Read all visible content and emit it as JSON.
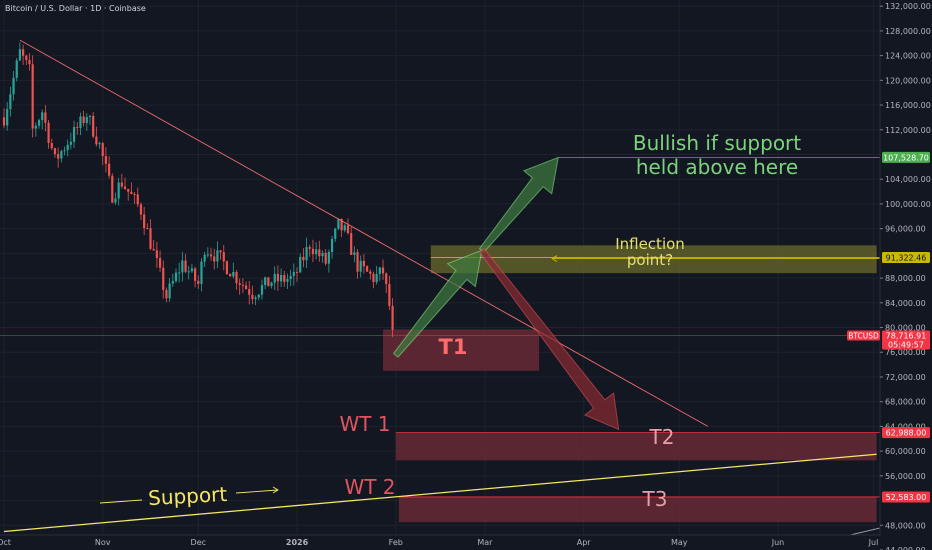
{
  "title": "Bitcoin / U.S. Dollar · 1D · Coinbase",
  "colors": {
    "background": "#131722",
    "grid": "#1e222d",
    "up_candle": "#26a69a",
    "down_candle": "#ef5350",
    "price_line": "#f23645",
    "downtrend_line": "#f06b6b",
    "support_line": "#f5e663",
    "bullish_green": "#7dd37d",
    "bearish_red": "#c23b3b",
    "target_box": "#6b2a36",
    "inflection_box": "#6a6a2a"
  },
  "chart_data": {
    "type": "candlestick",
    "title": "Bitcoin / U.S. Dollar · 1D · Coinbase",
    "y_axis": {
      "min": 44000,
      "max": 133000,
      "ticks": [
        "132,000.00",
        "128,000.00",
        "124,000.00",
        "120,000.00",
        "116,000.00",
        "112,000.00",
        "104,000.00",
        "100,000.00",
        "96,000.00",
        "88,000.00",
        "84,000.00",
        "80,000.00",
        "76,000.00",
        "72,000.00",
        "68,000.00",
        "64,000.00",
        "60,000.00",
        "56,000.00",
        "48,000.00",
        "44,000.00"
      ]
    },
    "x_axis": {
      "ticks": [
        "Oct",
        "Nov",
        "Dec",
        "2026",
        "Feb",
        "Mar",
        "Apr",
        "May",
        "Jun",
        "Jul"
      ]
    },
    "close_path": [
      [
        "2025-10-01",
        114000
      ],
      [
        "2025-10-06",
        124500
      ],
      [
        "2025-10-09",
        121500
      ],
      [
        "2025-10-10",
        112000
      ],
      [
        "2025-10-13",
        115000
      ],
      [
        "2025-10-17",
        107000
      ],
      [
        "2025-10-21",
        110000
      ],
      [
        "2025-10-27",
        114500
      ],
      [
        "2025-10-31",
        109500
      ],
      [
        "2025-11-04",
        101500
      ],
      [
        "2025-11-07",
        103500
      ],
      [
        "2025-11-13",
        99000
      ],
      [
        "2025-11-17",
        92000
      ],
      [
        "2025-11-21",
        85000
      ],
      [
        "2025-11-26",
        90500
      ],
      [
        "2025-12-01",
        87000
      ],
      [
        "2025-12-03",
        93000
      ],
      [
        "2025-12-08",
        91000
      ],
      [
        "2025-12-15",
        87000
      ],
      [
        "2025-12-18",
        85500
      ],
      [
        "2025-12-24",
        87500
      ],
      [
        "2025-12-31",
        88000
      ],
      [
        "2026-01-05",
        93500
      ],
      [
        "2026-01-10",
        90500
      ],
      [
        "2026-01-14",
        96500
      ],
      [
        "2026-01-16",
        95500
      ],
      [
        "2026-01-20",
        90000
      ],
      [
        "2026-01-25",
        88000
      ],
      [
        "2026-01-28",
        89000
      ],
      [
        "2026-01-30",
        83500
      ],
      [
        "2026-01-31",
        78700
      ]
    ],
    "current_price": {
      "symbol": "BTCUSD",
      "price": "78,716.91",
      "countdown": "05:49:57",
      "value": 78716.91
    },
    "price_labels": [
      {
        "text": "107,528.70",
        "value": 107528.7,
        "color": "#4caf50"
      },
      {
        "text": "91,322.46",
        "value": 91322.46,
        "color": "#c9b900"
      },
      {
        "text": "62,988.00",
        "value": 62988,
        "color": "#f23645"
      },
      {
        "text": "52,583.00",
        "value": 52583,
        "color": "#f23645"
      }
    ],
    "trendlines": [
      {
        "name": "downtrend",
        "from": [
          "2025-10-06",
          126500
        ],
        "to": [
          "2026-05-10",
          64000
        ]
      },
      {
        "name": "support",
        "from": [
          "2025-10-01",
          47000
        ],
        "to": [
          "2026-07-02",
          59500
        ]
      }
    ],
    "zones": [
      {
        "label": "T1",
        "from": [
          "2026-01-28",
          73000
        ],
        "to": [
          "2026-03-18",
          79700
        ]
      },
      {
        "label": "T2",
        "from": [
          "2026-02-01",
          58500
        ],
        "to": [
          "2026-07-02",
          63000
        ]
      },
      {
        "label": "T3",
        "from": [
          "2026-02-02",
          48500
        ],
        "to": [
          "2026-07-02",
          52600
        ]
      },
      {
        "label": "inflection",
        "from": [
          "2026-02-12",
          88800
        ],
        "to": [
          "2026-07-02",
          93300
        ]
      }
    ],
    "arrows": [
      {
        "name": "bullish-arrow-1",
        "from": [
          "2026-02-01",
          75500
        ],
        "to": [
          "2026-02-28",
          92500
        ],
        "color": "green"
      },
      {
        "name": "bullish-arrow-2",
        "from": [
          "2026-02-28",
          92500
        ],
        "to": [
          "2026-03-24",
          107500
        ],
        "color": "green"
      },
      {
        "name": "bearish-arrow",
        "from": [
          "2026-02-28",
          92500
        ],
        "to": [
          "2026-04-12",
          63500
        ],
        "color": "red"
      }
    ],
    "annotations": [
      {
        "name": "bullish-note",
        "lines": [
          "Bullish if support",
          "held above here"
        ]
      },
      {
        "name": "inflection-note",
        "lines": [
          "Inflection",
          "point?"
        ]
      },
      {
        "name": "support-label",
        "text": "Support"
      },
      {
        "name": "wt1-label",
        "text": "WT 1"
      },
      {
        "name": "wt2-label",
        "text": "WT 2"
      },
      {
        "name": "t1-label",
        "text": "T1"
      },
      {
        "name": "t2-label",
        "text": "T2"
      },
      {
        "name": "t3-label",
        "text": "T3"
      }
    ]
  }
}
